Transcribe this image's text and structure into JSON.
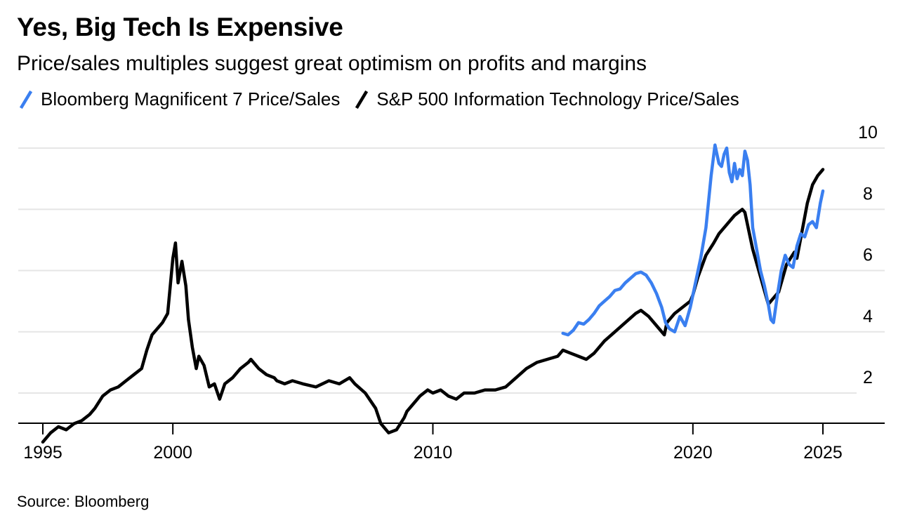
{
  "title": "Yes, Big Tech Is Expensive",
  "subtitle": "Price/sales multiples suggest great optimism on profits and margins",
  "source": "Source: Bloomberg",
  "colors": {
    "mag7": "#3a7ff0",
    "sp500it": "#000000",
    "grid": "#e6e6e6",
    "axis": "#000000"
  },
  "chart_data": {
    "type": "line",
    "title": "Yes, Big Tech Is Expensive",
    "subtitle": "Price/sales multiples suggest great optimism on profits and margins",
    "xlabel": "",
    "ylabel": "",
    "xlim": [
      1995,
      2025.9
    ],
    "ylim": [
      0.2,
      10.2
    ],
    "grid": true,
    "legend": "top-left",
    "x_ticks": [
      1995,
      2000,
      2010,
      2020,
      2025
    ],
    "x_tick_labels": [
      "1995",
      "2000",
      "2010",
      "2020",
      "2025"
    ],
    "y_ticks": [
      2,
      4,
      6,
      8,
      10
    ],
    "y_tick_labels": [
      "2",
      "4",
      "6",
      "8",
      "10"
    ],
    "series": [
      {
        "name": "S&P 500 Information Technology Price/Sales",
        "color": "#000000",
        "x": [
          1995.0,
          1995.3,
          1995.6,
          1995.9,
          1996.2,
          1996.5,
          1996.8,
          1997.0,
          1997.3,
          1997.6,
          1997.9,
          1998.2,
          1998.5,
          1998.8,
          1999.0,
          1999.2,
          1999.4,
          1999.6,
          1999.8,
          2000.0,
          2000.1,
          2000.2,
          2000.35,
          2000.5,
          2000.6,
          2000.75,
          2000.9,
          2001.0,
          2001.2,
          2001.4,
          2001.6,
          2001.8,
          2002.0,
          2002.3,
          2002.6,
          2002.9,
          2003.0,
          2003.3,
          2003.6,
          2003.9,
          2004.0,
          2004.3,
          2004.6,
          2005.0,
          2005.5,
          2006.0,
          2006.4,
          2006.8,
          2007.0,
          2007.4,
          2007.8,
          2008.0,
          2008.3,
          2008.6,
          2008.9,
          2009.0,
          2009.2,
          2009.5,
          2009.8,
          2010.0,
          2010.3,
          2010.6,
          2010.9,
          2011.2,
          2011.6,
          2012.0,
          2012.4,
          2012.8,
          2013.2,
          2013.6,
          2014.0,
          2014.4,
          2014.8,
          2015.0,
          2015.3,
          2015.6,
          2015.9,
          2016.2,
          2016.6,
          2017.0,
          2017.4,
          2017.8,
          2018.0,
          2018.3,
          2018.6,
          2018.9,
          2019.0,
          2019.3,
          2019.6,
          2019.9,
          2020.0,
          2020.2,
          2020.5,
          2020.8,
          2021.0,
          2021.3,
          2021.6,
          2021.9,
          2022.0,
          2022.3,
          2022.6,
          2022.9,
          2023.0,
          2023.3,
          2023.6,
          2023.9,
          2024.0,
          2024.2,
          2024.4,
          2024.6,
          2024.8,
          2025.0
        ],
        "values": [
          0.4,
          0.7,
          0.9,
          0.8,
          1.0,
          1.1,
          1.3,
          1.5,
          1.9,
          2.1,
          2.2,
          2.4,
          2.6,
          2.8,
          3.4,
          3.9,
          4.1,
          4.3,
          4.6,
          6.4,
          6.9,
          5.6,
          6.3,
          5.5,
          4.4,
          3.5,
          2.8,
          3.2,
          2.9,
          2.2,
          2.3,
          1.8,
          2.3,
          2.5,
          2.8,
          3.0,
          3.1,
          2.8,
          2.6,
          2.5,
          2.4,
          2.3,
          2.4,
          2.3,
          2.2,
          2.4,
          2.3,
          2.5,
          2.3,
          2.0,
          1.5,
          1.0,
          0.7,
          0.8,
          1.2,
          1.4,
          1.6,
          1.9,
          2.1,
          2.0,
          2.1,
          1.9,
          1.8,
          2.0,
          2.0,
          2.1,
          2.1,
          2.2,
          2.5,
          2.8,
          3.0,
          3.1,
          3.2,
          3.4,
          3.3,
          3.2,
          3.1,
          3.3,
          3.7,
          4.0,
          4.3,
          4.6,
          4.7,
          4.5,
          4.2,
          3.9,
          4.3,
          4.6,
          4.8,
          5.0,
          5.2,
          5.8,
          6.5,
          6.9,
          7.2,
          7.5,
          7.8,
          8.0,
          7.9,
          6.7,
          5.8,
          4.9,
          5.0,
          5.3,
          6.2,
          6.6,
          6.4,
          7.3,
          8.2,
          8.8,
          9.1,
          9.3
        ]
      },
      {
        "name": "Bloomberg Magnificent 7 Price/Sales",
        "color": "#3a7ff0",
        "x": [
          2015.0,
          2015.2,
          2015.4,
          2015.6,
          2015.8,
          2016.0,
          2016.2,
          2016.4,
          2016.6,
          2016.8,
          2017.0,
          2017.2,
          2017.4,
          2017.6,
          2017.8,
          2018.0,
          2018.2,
          2018.4,
          2018.6,
          2018.8,
          2018.95,
          2019.1,
          2019.3,
          2019.5,
          2019.7,
          2019.9,
          2020.1,
          2020.3,
          2020.5,
          2020.7,
          2020.85,
          2021.0,
          2021.1,
          2021.2,
          2021.3,
          2021.4,
          2021.5,
          2021.6,
          2021.7,
          2021.8,
          2021.9,
          2022.0,
          2022.1,
          2022.2,
          2022.3,
          2022.45,
          2022.6,
          2022.75,
          2022.9,
          2023.0,
          2023.1,
          2023.25,
          2023.4,
          2023.55,
          2023.7,
          2023.85,
          2024.0,
          2024.15,
          2024.3,
          2024.45,
          2024.6,
          2024.75,
          2024.9,
          2025.0
        ],
        "values": [
          3.95,
          3.9,
          4.05,
          4.3,
          4.25,
          4.4,
          4.6,
          4.85,
          5.0,
          5.15,
          5.35,
          5.4,
          5.6,
          5.75,
          5.9,
          5.95,
          5.85,
          5.6,
          5.25,
          4.8,
          4.3,
          4.1,
          4.0,
          4.5,
          4.2,
          4.8,
          5.6,
          6.4,
          7.4,
          9.1,
          10.1,
          9.5,
          9.4,
          9.8,
          10.0,
          9.2,
          8.9,
          9.5,
          9.0,
          9.3,
          9.1,
          9.9,
          9.6,
          8.8,
          7.4,
          6.7,
          6.0,
          5.5,
          4.9,
          4.4,
          4.3,
          5.2,
          6.0,
          6.5,
          6.2,
          6.1,
          6.8,
          7.2,
          7.1,
          7.5,
          7.6,
          7.4,
          8.2,
          8.6
        ]
      }
    ]
  }
}
